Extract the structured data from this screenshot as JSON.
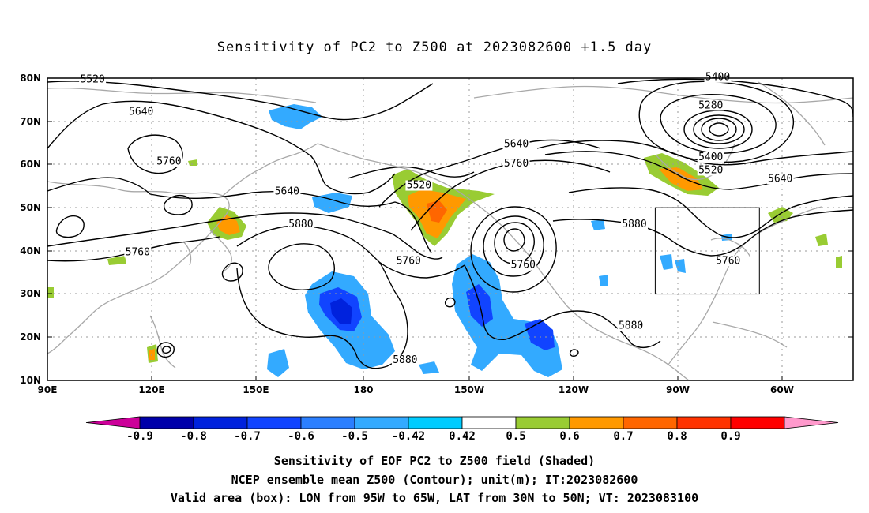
{
  "title": "Sensitivity of PC2 to Z500 at 2023082600 +1.5 day",
  "footer": {
    "line1": "Sensitivity of EOF PC2 to Z500 field (Shaded)",
    "line2": "NCEP ensemble mean Z500 (Contour); unit(m); IT:2023082600",
    "line3": "Valid area (box): LON from 95W to 65W, LAT from 30N to 50N; VT: 2023083100"
  },
  "axes": {
    "lat_labels": [
      "80N",
      "70N",
      "60N",
      "50N",
      "40N",
      "30N",
      "20N",
      "10N"
    ],
    "lat_values": [
      80,
      70,
      60,
      50,
      40,
      30,
      20,
      10
    ],
    "lon_labels": [
      "90E",
      "120E",
      "150E",
      "180",
      "150W",
      "120W",
      "90W",
      "60W"
    ],
    "lon_values": [
      90,
      120,
      150,
      180,
      210,
      240,
      270,
      300
    ],
    "lon_range": [
      90,
      322
    ],
    "lat_range": [
      10,
      80
    ]
  },
  "colorbar": {
    "labels": [
      "-0.9",
      "-0.8",
      "-0.7",
      "-0.6",
      "-0.5",
      "-0.42",
      "0.42",
      "0.5",
      "0.6",
      "0.7",
      "0.8",
      "0.9"
    ],
    "colors": [
      "#cc0099",
      "#0000aa",
      "#0022dd",
      "#1144ff",
      "#2b7fff",
      "#33aaff",
      "#00ccff",
      "#ffffff",
      "#99cc33",
      "#ff9900",
      "#ff6600",
      "#ff3300",
      "#ff0000",
      "#ff99cc"
    ]
  },
  "contour_labels": [
    {
      "text": "5520",
      "lon": 103,
      "lat": 79
    },
    {
      "text": "5640",
      "lon": 117,
      "lat": 71.5
    },
    {
      "text": "5760",
      "lon": 125,
      "lat": 60
    },
    {
      "text": "5640",
      "lon": 159,
      "lat": 53
    },
    {
      "text": "5880",
      "lon": 163,
      "lat": 45.5
    },
    {
      "text": "5760",
      "lon": 116,
      "lat": 39
    },
    {
      "text": "5520",
      "lon": 197,
      "lat": 54.5
    },
    {
      "text": "5640",
      "lon": 225,
      "lat": 64
    },
    {
      "text": "5760",
      "lon": 225,
      "lat": 59.5
    },
    {
      "text": "5760",
      "lon": 194,
      "lat": 37
    },
    {
      "text": "5760",
      "lon": 227,
      "lat": 36
    },
    {
      "text": "5880",
      "lon": 259,
      "lat": 45.5
    },
    {
      "text": "5880",
      "lon": 258,
      "lat": 22
    },
    {
      "text": "5880",
      "lon": 193,
      "lat": 14
    },
    {
      "text": "5400",
      "lon": 283,
      "lat": 79.5
    },
    {
      "text": "5280",
      "lon": 281,
      "lat": 73
    },
    {
      "text": "5400",
      "lon": 281,
      "lat": 61
    },
    {
      "text": "5520",
      "lon": 281,
      "lat": 58
    },
    {
      "text": "5640",
      "lon": 301,
      "lat": 56
    },
    {
      "text": "5760",
      "lon": 286,
      "lat": 37
    }
  ],
  "valid_box": {
    "lon_min": 265,
    "lon_max": 295,
    "lat_min": 30,
    "lat_max": 50
  }
}
